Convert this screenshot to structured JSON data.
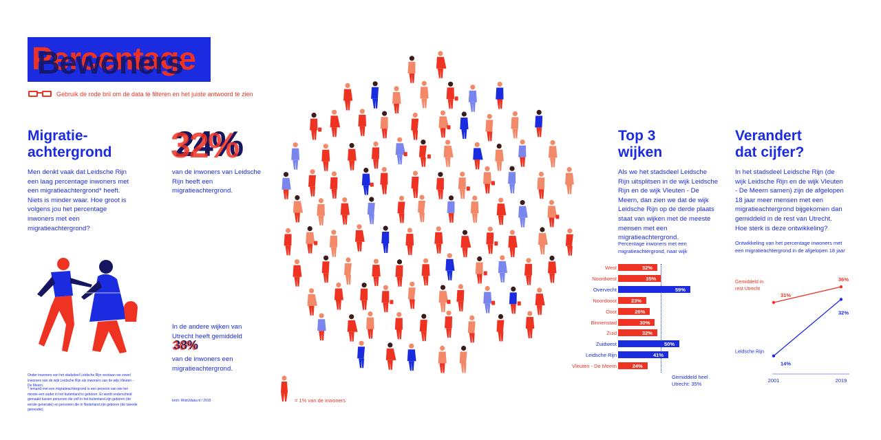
{
  "colors": {
    "blue": "#1b2be0",
    "red": "#ee3322",
    "salmon": "#f28a6a",
    "lightblue": "#7a86ee"
  },
  "header": {
    "title_red": "Percentage",
    "title_blue": "Bewoners",
    "hint": "Gebruik de rode bril om de data te filteren en het juiste antwoord te zien"
  },
  "section1": {
    "heading_line1": "Migratie-",
    "heading_line2": "achtergrond",
    "body": "Men denkt vaak dat Leidsche Rijn een laag percentage inwoners met een migratieachtergrond* heeft. Niets is minder waar. Hoe groot is volgens jou het percentage inwoners met een migratieachtergrond?",
    "footnote1": "Onder inwoners van het stadsdeel Leidsche Rijn verstaan we zowel inwoners van de wijk Leidsche Rijn als inwoners van de wijk Vleuten - De Meern.",
    "footnote2": "* Iemand met een migratieachtergrond is een persoon van wie ten minste een ouder in het buitenland is geboren. Er wordt onderscheid gemaakt tussen personen die zelf in het buitenland zijn geboren (de eerste generatie) en personen die in Nederland zijn geboren (de tweede generatie)."
  },
  "stat1": {
    "value_red": "32%",
    "value_blue": "24%",
    "text": "van de inwoners van Leidsche Rijn heeft een migratieachtergrond."
  },
  "stat2": {
    "intro": "In de andere wijken van Utrecht heeft gemiddeld",
    "value_red": "36%",
    "value_blue": "38%",
    "text": "van de inwoners een migratieachtergrond.",
    "source": "bron: WistUdata.nl / 2019"
  },
  "crowd": {
    "legend": "= 1% van de inwoners"
  },
  "top3": {
    "heading_line1": "Top 3",
    "heading_line2": "wijken",
    "body": "Als we het stadsdeel Leidsche Rijn uitsplitsen in de wijk Leidsche Rijn en de wijk Vleuten - De Meern, dan zien we dat de wijk Leidsche Rijn op de derde plaats staat van wijken met de meeste mensen met een migratieachtergrond."
  },
  "verandert": {
    "heading_line1": "Verandert",
    "heading_line2": "dat cijfer?",
    "body": "In het stadsdeel Leidsche Rijn (de wijk Leidsche Rijn en de wijk Vleuten - De Meern samen) zijn de afgelopen 18 jaar meer mensen met een migratieachtergrond bijgekomen dan gemiddeld in de rest van Utrecht. Hoe sterk is deze ontwikkeling?"
  },
  "chart_data": [
    {
      "type": "bar",
      "title": "Percentage inwoners met een migratieachtergrond, naar wijk",
      "categories": [
        "West",
        "Noordwest",
        "Overvecht",
        "Noordoost",
        "Oost",
        "Binnenstad",
        "Zuid",
        "Zuidwest",
        "Leidsche Rijn",
        "Vleuten - De Meern"
      ],
      "values": [
        32,
        35,
        59,
        23,
        26,
        30,
        32,
        50,
        41,
        24
      ],
      "value_labels": [
        "32%",
        "35%",
        "59%",
        "23%",
        "26%",
        "30%",
        "32%",
        "50%",
        "41%",
        "24%"
      ],
      "bar_colors": [
        "red",
        "red",
        "blue",
        "red",
        "red",
        "red",
        "red",
        "blue",
        "blue",
        "red"
      ],
      "reference": {
        "value": 35,
        "label": "Gemiddeld heel Utrecht: 35%"
      },
      "xlim": [
        0,
        63
      ]
    },
    {
      "type": "line",
      "title": "Ontwikkeling van het percentage inwoners met een migratieachtergrond in de afgelopen 18 jaar",
      "x": [
        "2001",
        "2019"
      ],
      "series": [
        {
          "name": "Gemiddeld in rest Utrecht",
          "values": [
            31,
            36
          ],
          "labels": [
            "31%",
            "36%"
          ],
          "color": "red"
        },
        {
          "name": "Leidsche Rijn",
          "values": [
            14,
            32
          ],
          "labels": [
            "14%",
            "32%"
          ],
          "color": "blue"
        }
      ],
      "ylim": [
        10,
        38
      ]
    }
  ]
}
